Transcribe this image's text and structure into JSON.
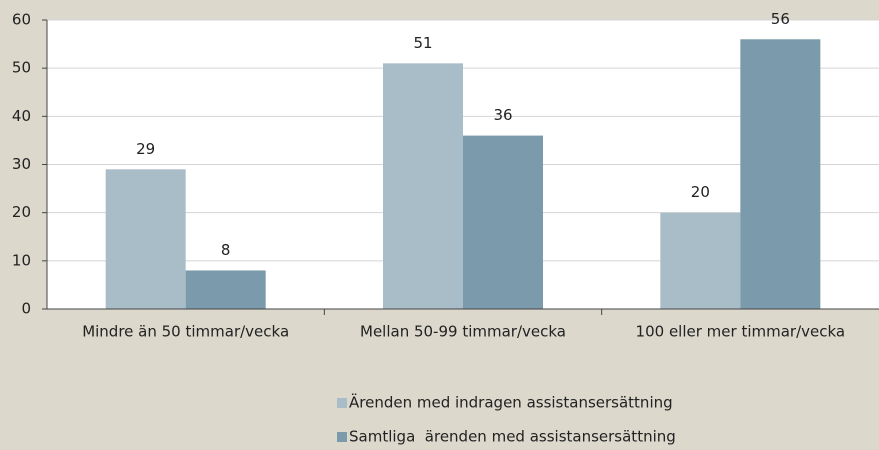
{
  "chart_data": {
    "type": "bar",
    "categories": [
      "Mindre än 50 timmar/vecka",
      "Mellan 50-99 timmar/vecka",
      "100 eller mer timmar/vecka"
    ],
    "series": [
      {
        "name": "Ärenden med indragen assistansersättning",
        "color": "#a8bdc7",
        "values": [
          29,
          51,
          20
        ]
      },
      {
        "name": "Samtliga  ärenden med assistansersättning",
        "color": "#7b9aab",
        "values": [
          8,
          36,
          56
        ]
      }
    ],
    "ylim": [
      0,
      60
    ],
    "yticks": [
      0,
      10,
      20,
      30,
      40,
      50,
      60
    ],
    "grid": true
  }
}
